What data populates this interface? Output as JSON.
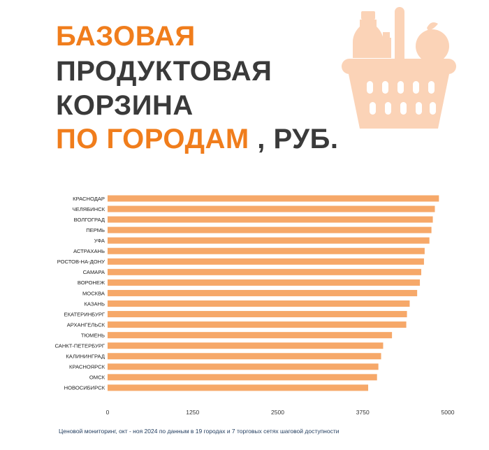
{
  "title": {
    "line1": "БАЗОВАЯ",
    "line2": "ПРОДУКТОВАЯ",
    "line3": "КОРЗИНА",
    "line4_accent": "ПО ГОРОДАМ",
    "line4_rest": " , РУБ."
  },
  "icon": "grocery-basket-icon",
  "colors": {
    "accent": "#f07d1c",
    "bar": "#f6a869",
    "text_dark": "#3a3a3a",
    "icon": "#fbd3b7"
  },
  "footnote": "Ценовой мониторинг, окт - ноя 2024 по данным в 19 городах и 7 торговых сетях шаговой доступности",
  "chart_data": {
    "type": "bar",
    "orientation": "horizontal",
    "categories": [
      "КРАСНОДАР",
      "ЧЕЛЯБИНСК",
      "ВОЛГОГРАД",
      "ПЕРМЬ",
      "УФА",
      "АСТРАХАНЬ",
      "РОСТОВ-НА-ДОНУ",
      "САМАРА",
      "ВОРОНЕЖ",
      "МОСКВА",
      "КАЗАНЬ",
      "ЕКАТЕРИНБУРГ",
      "АРХАНГЕЛЬСК",
      "ТЮМЕНЬ",
      "САНКТ-ПЕТЕРБУРГ",
      "КАЛИНИНГРАД",
      "КРАСНОЯРСК",
      "ОМСК",
      "НОВОСИБИРСК"
    ],
    "values": [
      4870,
      4810,
      4780,
      4760,
      4730,
      4660,
      4650,
      4610,
      4590,
      4550,
      4440,
      4400,
      4390,
      4180,
      4050,
      4020,
      3980,
      3960,
      3830
    ],
    "xlim": [
      0,
      5000
    ],
    "xticks": [
      0,
      1250,
      2500,
      3750,
      5000
    ],
    "grid": false,
    "legend": "none"
  }
}
